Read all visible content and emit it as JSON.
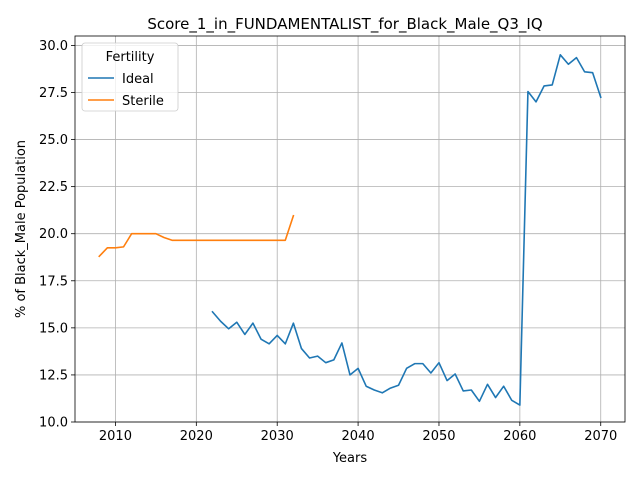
{
  "chart_data": {
    "type": "line",
    "title": "Score_1_in_FUNDAMENTALIST_for_Black_Male_Q3_IQ",
    "xlabel": "Years",
    "ylabel": "% of Black_Male Population",
    "xlim": [
      2005,
      2073
    ],
    "ylim": [
      10.0,
      30.5
    ],
    "x_ticks": [
      2010,
      2020,
      2030,
      2040,
      2050,
      2060,
      2070
    ],
    "y_ticks": [
      10.0,
      12.5,
      15.0,
      17.5,
      20.0,
      22.5,
      25.0,
      27.5,
      30.0
    ],
    "grid": true,
    "legend": {
      "title": "Fertility",
      "placement": "top-left"
    },
    "series": [
      {
        "name": "Ideal",
        "color": "#1f77b4",
        "x": [
          2022,
          2023,
          2024,
          2025,
          2026,
          2027,
          2028,
          2029,
          2030,
          2031,
          2032,
          2033,
          2034,
          2035,
          2036,
          2037,
          2038,
          2039,
          2040,
          2041,
          2042,
          2043,
          2044,
          2045,
          2046,
          2047,
          2048,
          2049,
          2050,
          2051,
          2052,
          2053,
          2054,
          2055,
          2056,
          2057,
          2058,
          2059,
          2060,
          2061,
          2062,
          2063,
          2064,
          2065,
          2066,
          2067,
          2068,
          2069,
          2070
        ],
        "values": [
          15.85,
          15.35,
          14.95,
          15.3,
          14.65,
          15.25,
          14.4,
          14.15,
          14.6,
          14.15,
          15.25,
          13.9,
          13.4,
          13.5,
          13.15,
          13.3,
          14.2,
          12.5,
          12.85,
          11.9,
          11.7,
          11.55,
          11.8,
          11.95,
          12.85,
          13.1,
          13.1,
          12.6,
          13.15,
          12.2,
          12.55,
          11.65,
          11.7,
          11.1,
          12.0,
          11.3,
          11.9,
          11.15,
          10.9,
          27.55,
          27.0,
          27.85,
          27.9,
          29.5,
          29.0,
          29.35,
          28.6,
          28.55,
          27.25
        ]
      },
      {
        "name": "Sterile",
        "color": "#ff7f0e",
        "x": [
          2008,
          2009,
          2010,
          2011,
          2012,
          2013,
          2014,
          2015,
          2016,
          2017,
          2018,
          2019,
          2020,
          2021,
          2022,
          2023,
          2024,
          2025,
          2026,
          2027,
          2028,
          2029,
          2030,
          2031,
          2032
        ],
        "values": [
          18.8,
          19.25,
          19.25,
          19.3,
          20.0,
          20.0,
          20.0,
          20.0,
          19.8,
          19.65,
          19.65,
          19.65,
          19.65,
          19.65,
          19.65,
          19.65,
          19.65,
          19.65,
          19.65,
          19.65,
          19.65,
          19.65,
          19.65,
          19.65,
          20.95
        ]
      }
    ]
  }
}
